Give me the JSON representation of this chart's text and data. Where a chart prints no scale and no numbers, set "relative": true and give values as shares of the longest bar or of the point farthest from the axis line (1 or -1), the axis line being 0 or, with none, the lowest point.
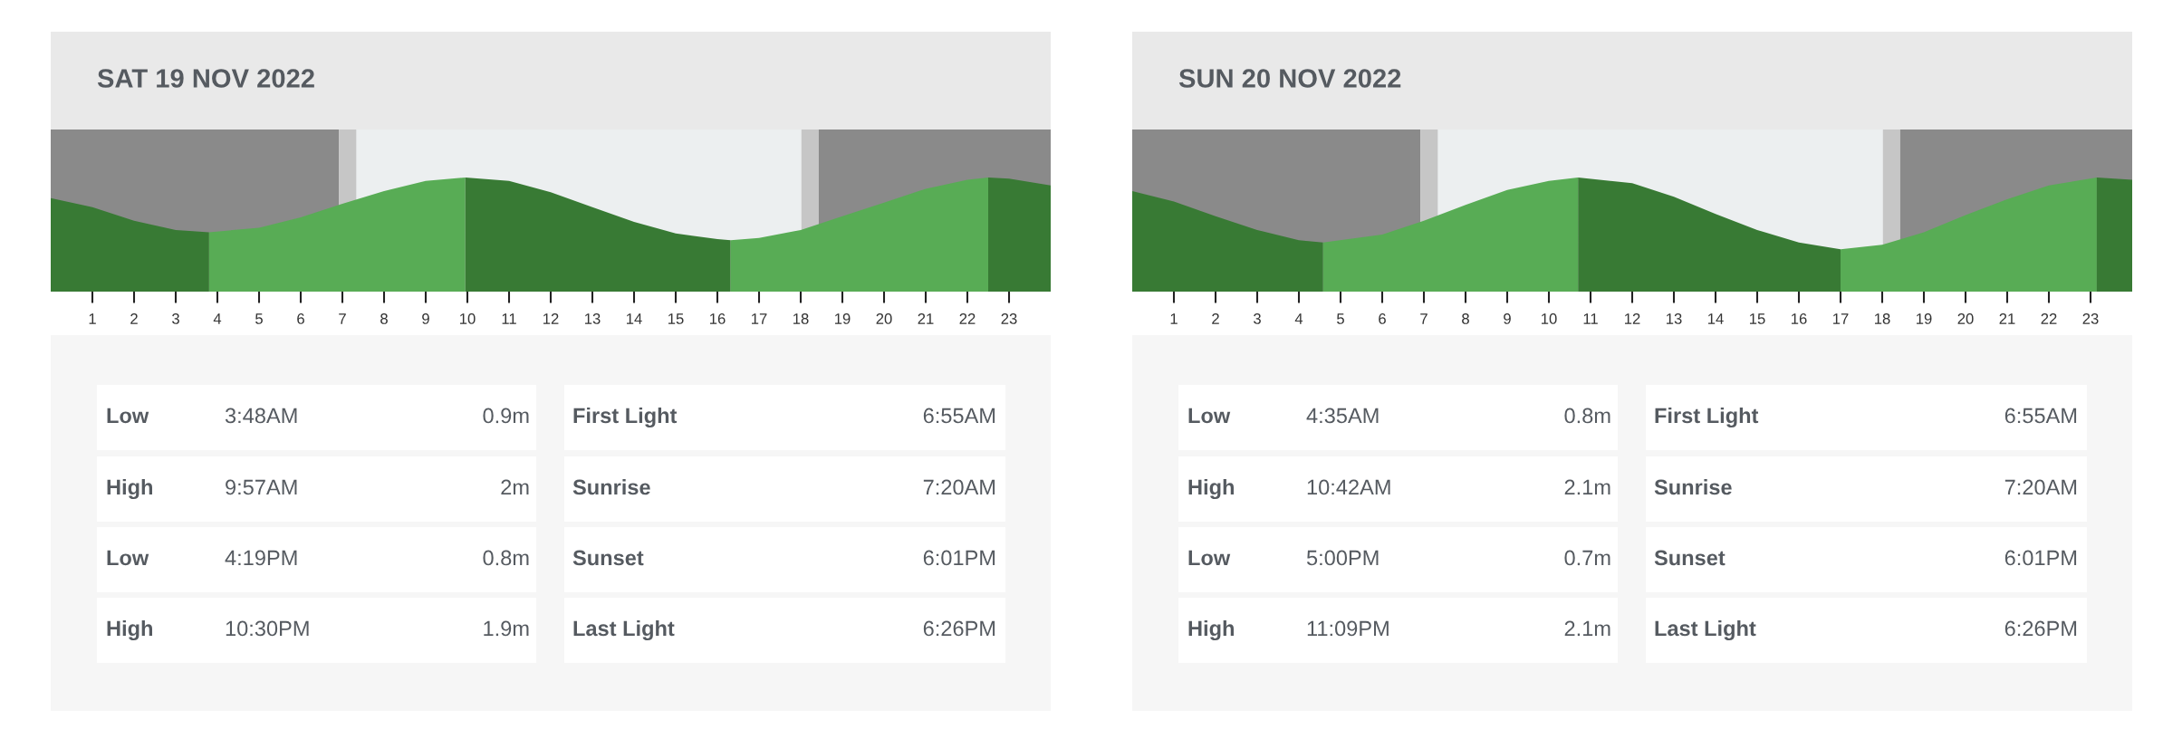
{
  "chart_data": [
    {
      "type": "area",
      "title": "SAT 19 NOV 2022",
      "relative": true,
      "xlim": [
        0,
        24
      ],
      "xticks": [
        1,
        2,
        3,
        4,
        5,
        6,
        7,
        8,
        9,
        10,
        11,
        12,
        13,
        14,
        15,
        16,
        17,
        18,
        19,
        20,
        21,
        22,
        23
      ],
      "bands": [
        {
          "axis": "x",
          "from": 0,
          "to": 24,
          "color": "#eceff0"
        },
        {
          "axis": "x",
          "from": 0,
          "to": 6.917,
          "color": "#8a8a8a"
        },
        {
          "axis": "x",
          "from": 6.917,
          "to": 7.333,
          "color": "#c6c6c6"
        },
        {
          "axis": "x",
          "from": 18.017,
          "to": 18.433,
          "color": "#c6c6c6"
        },
        {
          "axis": "x",
          "from": 18.433,
          "to": 24,
          "color": "#8a8a8a"
        }
      ],
      "series": [
        {
          "color": "#387a34",
          "x": [
            0,
            1,
            2,
            3,
            3.8
          ],
          "values": [
            0.82,
            0.74,
            0.62,
            0.54,
            0.52
          ]
        },
        {
          "color": "#58ac55",
          "x": [
            3.8,
            5,
            6,
            7,
            8,
            9,
            9.95
          ],
          "values": [
            0.52,
            0.56,
            0.65,
            0.77,
            0.88,
            0.97,
            1
          ]
        },
        {
          "color": "#387a34",
          "x": [
            9.95,
            11,
            12,
            13,
            14,
            15,
            16,
            16.32
          ],
          "values": [
            1,
            0.97,
            0.87,
            0.74,
            0.61,
            0.51,
            0.46,
            0.45
          ]
        },
        {
          "color": "#58ac55",
          "x": [
            16.32,
            17,
            18,
            19,
            20,
            21,
            22,
            22.5
          ],
          "values": [
            0.45,
            0.47,
            0.54,
            0.66,
            0.78,
            0.9,
            0.98,
            1
          ]
        },
        {
          "color": "#387a34",
          "x": [
            22.5,
            23,
            24
          ],
          "values": [
            1,
            0.99,
            0.93
          ]
        }
      ],
      "annotations": [
        "Low",
        "3:48AM",
        "0.9m",
        "High",
        "9:57AM",
        "2m",
        "Low",
        "4:19PM",
        "0.8m",
        "High",
        "10:30PM",
        "1.9m",
        "First Light",
        "6:55AM",
        "Sunrise",
        "7:20AM",
        "Sunset",
        "6:01PM",
        "Last Light",
        "6:26PM"
      ]
    },
    {
      "type": "area",
      "title": "SUN 20 NOV 2022",
      "relative": true,
      "xlim": [
        0,
        24
      ],
      "xticks": [
        1,
        2,
        3,
        4,
        5,
        6,
        7,
        8,
        9,
        10,
        11,
        12,
        13,
        14,
        15,
        16,
        17,
        18,
        19,
        20,
        21,
        22,
        23
      ],
      "bands": [
        {
          "axis": "x",
          "from": 0,
          "to": 24,
          "color": "#eceff0"
        },
        {
          "axis": "x",
          "from": 0,
          "to": 6.917,
          "color": "#8a8a8a"
        },
        {
          "axis": "x",
          "from": 6.917,
          "to": 7.333,
          "color": "#c6c6c6"
        },
        {
          "axis": "x",
          "from": 18.017,
          "to": 18.433,
          "color": "#c6c6c6"
        },
        {
          "axis": "x",
          "from": 18.433,
          "to": 24,
          "color": "#8a8a8a"
        }
      ],
      "series": [
        {
          "color": "#387a34",
          "x": [
            0,
            1,
            2,
            3,
            4,
            4.58
          ],
          "values": [
            0.88,
            0.79,
            0.66,
            0.54,
            0.45,
            0.43
          ]
        },
        {
          "color": "#58ac55",
          "x": [
            4.58,
            6,
            7,
            8,
            9,
            10,
            10.7
          ],
          "values": [
            0.43,
            0.5,
            0.62,
            0.76,
            0.89,
            0.97,
            1
          ]
        },
        {
          "color": "#387a34",
          "x": [
            10.7,
            12,
            13,
            14,
            15,
            16,
            17
          ],
          "values": [
            1,
            0.95,
            0.83,
            0.68,
            0.54,
            0.43,
            0.37
          ]
        },
        {
          "color": "#58ac55",
          "x": [
            17,
            18,
            19,
            20,
            21,
            22,
            23.15
          ],
          "values": [
            0.37,
            0.41,
            0.52,
            0.67,
            0.81,
            0.93,
            1
          ]
        },
        {
          "color": "#387a34",
          "x": [
            23.15,
            24
          ],
          "values": [
            1,
            0.98
          ]
        }
      ],
      "annotations": [
        "Low",
        "4:35AM",
        "0.8m",
        "High",
        "10:42AM",
        "2.1m",
        "Low",
        "5:00PM",
        "0.7m",
        "High",
        "11:09PM",
        "2.1m",
        "First Light",
        "6:55AM",
        "Sunrise",
        "7:20AM",
        "Sunset",
        "6:01PM",
        "Last Light",
        "6:26PM"
      ]
    }
  ]
}
